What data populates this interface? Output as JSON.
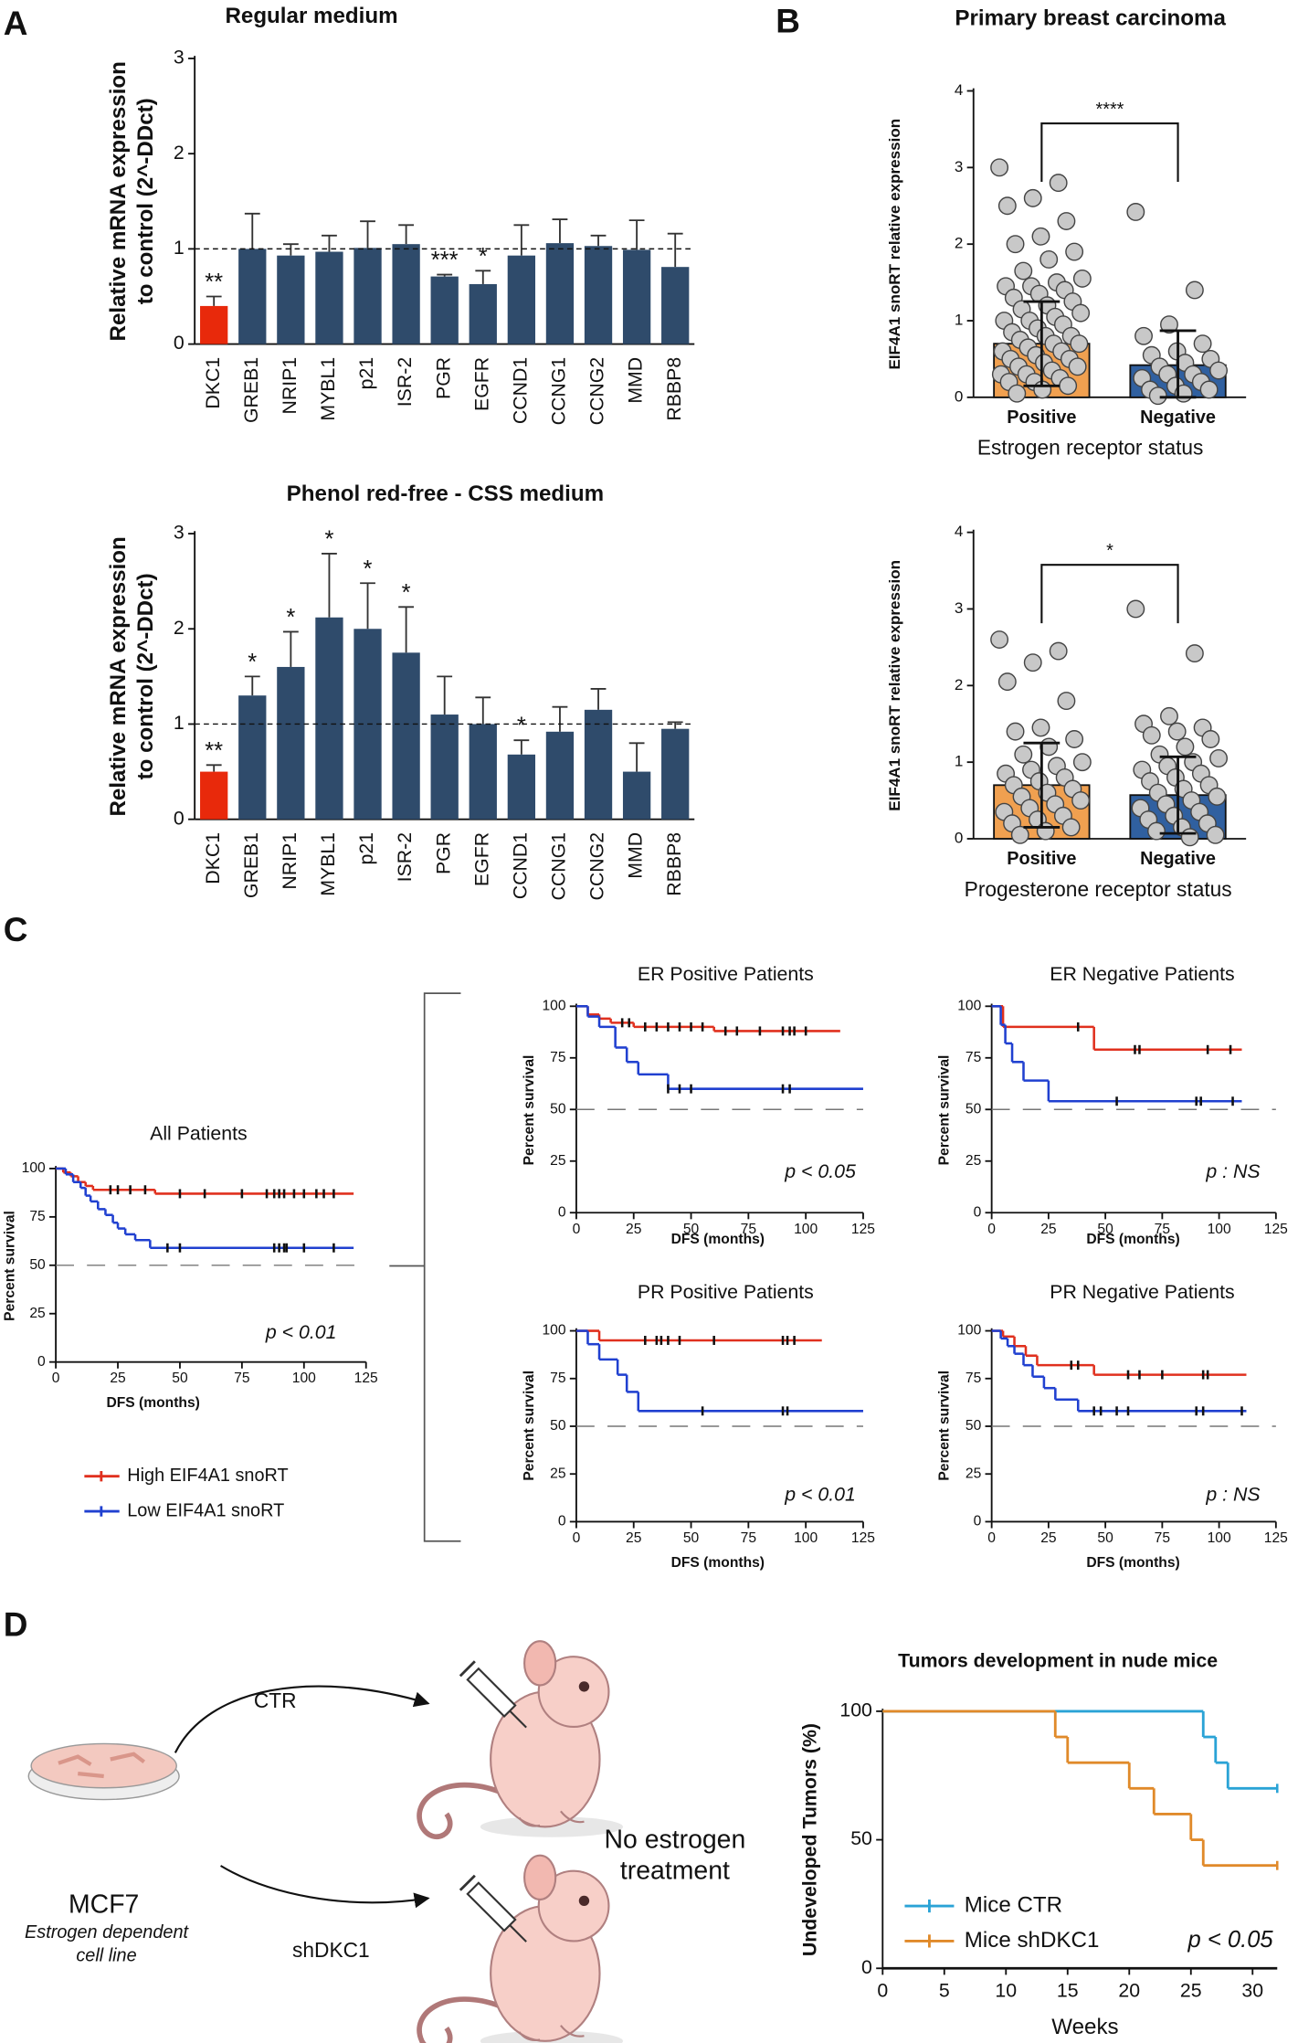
{
  "panel_labels": [
    "A",
    "B",
    "C",
    "D"
  ],
  "legend": [
    {
      "name": "High EIF4A1 snoRT",
      "color": "#e0301e"
    },
    {
      "name": "Low EIF4A1 snoRT",
      "color": "#2040d0"
    }
  ],
  "diagram": {
    "arrow_labels": [
      "CTR",
      "shDKC1"
    ],
    "cell_line": "MCF7",
    "cell_line_note": [
      "Estrogen dependent",
      "cell line"
    ],
    "treatment": [
      "No estrogen",
      "treatment"
    ]
  },
  "chart_data": [
    {
      "type": "bar",
      "title": "Regular medium",
      "y_label": [
        "Relative mRNA expression",
        "to control (2^-DDct)"
      ],
      "categories": [
        "DKC1",
        "GREB1",
        "NRIP1",
        "MYBL1",
        "p21",
        "ISR-2",
        "PGR",
        "EGFR",
        "CCND1",
        "CCNG1",
        "CCNG2",
        "MMD",
        "RBBP8"
      ],
      "values": [
        0.4,
        1.0,
        0.93,
        0.97,
        1.01,
        1.05,
        0.71,
        0.63,
        0.93,
        1.06,
        1.03,
        0.99,
        0.81
      ],
      "errors": [
        0.1,
        0.37,
        0.12,
        0.17,
        0.28,
        0.2,
        0.02,
        0.14,
        0.32,
        0.25,
        0.11,
        0.31,
        0.35
      ],
      "colors": [
        "#e8290b",
        "#2f4b6b",
        "#2f4b6b",
        "#2f4b6b",
        "#2f4b6b",
        "#2f4b6b",
        "#2f4b6b",
        "#2f4b6b",
        "#2f4b6b",
        "#2f4b6b",
        "#2f4b6b",
        "#2f4b6b",
        "#2f4b6b"
      ],
      "annotations": [
        "**",
        null,
        null,
        null,
        null,
        null,
        "***",
        "*",
        null,
        null,
        null,
        null,
        null
      ],
      "ylim": [
        0,
        3
      ],
      "yticks": [
        0,
        1,
        2,
        3
      ],
      "reference_line": 1
    },
    {
      "type": "bar",
      "title": "Phenol red-free - CSS medium",
      "y_label": [
        "Relative mRNA expression",
        "to control (2^-DDct)"
      ],
      "categories": [
        "DKC1",
        "GREB1",
        "NRIP1",
        "MYBL1",
        "p21",
        "ISR-2",
        "PGR",
        "EGFR",
        "CCND1",
        "CCNG1",
        "CCNG2",
        "MMD",
        "RBBP8"
      ],
      "values": [
        0.5,
        1.3,
        1.6,
        2.12,
        2.0,
        1.75,
        1.1,
        1.0,
        0.68,
        0.92,
        1.15,
        0.5,
        0.95
      ],
      "errors": [
        0.07,
        0.2,
        0.37,
        0.67,
        0.48,
        0.48,
        0.4,
        0.28,
        0.15,
        0.26,
        0.22,
        0.3,
        0.07
      ],
      "colors": [
        "#e8290b",
        "#2f4b6b",
        "#2f4b6b",
        "#2f4b6b",
        "#2f4b6b",
        "#2f4b6b",
        "#2f4b6b",
        "#2f4b6b",
        "#2f4b6b",
        "#2f4b6b",
        "#2f4b6b",
        "#2f4b6b",
        "#2f4b6b"
      ],
      "annotations": [
        "**",
        "*",
        "*",
        "*",
        "*",
        "*",
        null,
        null,
        "*",
        null,
        null,
        null,
        null
      ],
      "ylim": [
        0,
        3
      ],
      "yticks": [
        0,
        1,
        2,
        3
      ],
      "reference_line": 1
    },
    {
      "type": "bar_scatter",
      "title": "Primary breast carcinoma",
      "y_label": "EIF4A1 snoRT relative expression",
      "x_label": "Estrogen receptor status",
      "categories": [
        "Positive",
        "Negative"
      ],
      "values": [
        0.7,
        0.42
      ],
      "errors": [
        0.55,
        0.45
      ],
      "colors": [
        "#f0a050",
        "#3060a0"
      ],
      "points": [
        [
          3.0,
          2.8,
          2.6,
          2.5,
          2.3,
          2.1,
          2.0,
          1.9,
          1.8,
          1.65,
          1.55,
          1.5,
          1.45,
          1.45,
          1.4,
          1.35,
          1.3,
          1.25,
          1.2,
          1.15,
          1.1,
          1.05,
          1.0,
          1.0,
          0.95,
          0.9,
          0.85,
          0.8,
          0.8,
          0.75,
          0.7,
          0.7,
          0.65,
          0.6,
          0.6,
          0.55,
          0.5,
          0.5,
          0.45,
          0.4,
          0.4,
          0.35,
          0.3,
          0.3,
          0.25,
          0.2,
          0.2,
          0.15,
          0.1,
          0.05
        ],
        [
          2.42,
          1.4,
          0.95,
          0.8,
          0.7,
          0.6,
          0.55,
          0.5,
          0.45,
          0.4,
          0.35,
          0.3,
          0.3,
          0.25,
          0.2,
          0.15,
          0.1,
          0.1,
          0.05,
          0.02
        ]
      ],
      "significance": "****",
      "ylim": [
        0,
        4
      ],
      "yticks": [
        0,
        1,
        2,
        3,
        4
      ]
    },
    {
      "type": "bar_scatter",
      "y_label": "EIF4A1 snoRT relative expression",
      "x_label": "Progesterone receptor status",
      "categories": [
        "Positive",
        "Negative"
      ],
      "values": [
        0.7,
        0.57
      ],
      "errors": [
        0.55,
        0.5
      ],
      "colors": [
        "#f0a050",
        "#3060a0"
      ],
      "points": [
        [
          2.6,
          2.45,
          2.3,
          2.05,
          1.8,
          1.45,
          1.4,
          1.3,
          1.2,
          1.1,
          1.0,
          0.95,
          0.9,
          0.85,
          0.8,
          0.75,
          0.7,
          0.65,
          0.6,
          0.55,
          0.5,
          0.45,
          0.4,
          0.35,
          0.3,
          0.25,
          0.2,
          0.15,
          0.1,
          0.05
        ],
        [
          3.0,
          2.42,
          1.6,
          1.5,
          1.45,
          1.4,
          1.35,
          1.3,
          1.2,
          1.1,
          1.05,
          1.0,
          0.95,
          0.9,
          0.85,
          0.8,
          0.75,
          0.7,
          0.65,
          0.6,
          0.55,
          0.5,
          0.45,
          0.4,
          0.35,
          0.3,
          0.25,
          0.2,
          0.15,
          0.1,
          0.05,
          0.02
        ]
      ],
      "significance": "*",
      "ylim": [
        0,
        4
      ],
      "yticks": [
        0,
        1,
        2,
        3,
        4
      ]
    },
    {
      "type": "survival",
      "title": "All Patients",
      "x_label": "DFS (months)",
      "y_label": "Percent survival",
      "p_label": "p < 0.01",
      "xlim": [
        0,
        125
      ],
      "xticks": [
        0,
        25,
        50,
        75,
        100,
        125
      ],
      "ylim": [
        0,
        100
      ],
      "yticks": [
        0,
        25,
        50,
        75,
        100
      ],
      "reference_line": 50,
      "series": [
        {
          "color": "#e0301e",
          "x": [
            0,
            3,
            6,
            9,
            12,
            15,
            40
          ],
          "values": [
            100,
            98,
            96,
            93,
            91,
            89,
            87
          ],
          "follow_up_end": 120,
          "censored": [
            22,
            25,
            30,
            36,
            50,
            60,
            75,
            85,
            88,
            90,
            92,
            96,
            100,
            105,
            108,
            112
          ]
        },
        {
          "color": "#2040d0",
          "x": [
            0,
            4,
            7,
            10,
            12,
            14,
            17,
            20,
            23,
            25,
            28,
            32,
            38
          ],
          "values": [
            100,
            97,
            93,
            90,
            86,
            83,
            79,
            76,
            72,
            69,
            66,
            63,
            59
          ],
          "follow_up_end": 120,
          "censored": [
            45,
            50,
            88,
            90,
            92,
            93,
            100,
            112
          ]
        }
      ]
    },
    {
      "type": "survival",
      "title": "ER Positive Patients",
      "x_label": "DFS (months)",
      "y_label": "Percent survival",
      "p_label": "p < 0.05",
      "xlim": [
        0,
        125
      ],
      "xticks": [
        0,
        25,
        50,
        75,
        100,
        125
      ],
      "ylim": [
        0,
        100
      ],
      "yticks": [
        0,
        25,
        50,
        75,
        100
      ],
      "reference_line": 50,
      "series": [
        {
          "color": "#e0301e",
          "x": [
            0,
            5,
            10,
            15,
            25,
            60
          ],
          "values": [
            100,
            96,
            94,
            92,
            90,
            88
          ],
          "follow_up_end": 115,
          "censored": [
            20,
            23,
            30,
            35,
            40,
            45,
            50,
            55,
            65,
            70,
            80,
            90,
            93,
            95,
            100
          ]
        },
        {
          "color": "#2040d0",
          "x": [
            0,
            5,
            10,
            17,
            22,
            27,
            40
          ],
          "values": [
            100,
            95,
            90,
            80,
            73,
            67,
            60
          ],
          "follow_up_end": 125,
          "censored": [
            40,
            45,
            50,
            90,
            93
          ]
        }
      ]
    },
    {
      "type": "survival",
      "title": "ER Negative Patients",
      "x_label": "DFS (months)",
      "y_label": "Percent survival",
      "p_label": "p : NS",
      "xlim": [
        0,
        125
      ],
      "xticks": [
        0,
        25,
        50,
        75,
        100,
        125
      ],
      "ylim": [
        0,
        100
      ],
      "yticks": [
        0,
        25,
        50,
        75,
        100
      ],
      "reference_line": 50,
      "series": [
        {
          "color": "#e0301e",
          "x": [
            0,
            5,
            45
          ],
          "values": [
            100,
            90,
            79
          ],
          "follow_up_end": 110,
          "censored": [
            38,
            63,
            65,
            95,
            105
          ]
        },
        {
          "color": "#2040d0",
          "x": [
            0,
            4,
            6,
            9,
            14,
            25
          ],
          "values": [
            100,
            91,
            82,
            73,
            64,
            54
          ],
          "follow_up_end": 110,
          "censored": [
            55,
            90,
            92,
            106
          ]
        }
      ]
    },
    {
      "type": "survival",
      "title": "PR Positive Patients",
      "x_label": "DFS (months)",
      "y_label": "Percent survival",
      "p_label": "p < 0.01",
      "xlim": [
        0,
        125
      ],
      "xticks": [
        0,
        25,
        50,
        75,
        100,
        125
      ],
      "ylim": [
        0,
        100
      ],
      "yticks": [
        0,
        25,
        50,
        75,
        100
      ],
      "reference_line": 50,
      "series": [
        {
          "color": "#e0301e",
          "x": [
            0,
            10
          ],
          "values": [
            100,
            95
          ],
          "follow_up_end": 107,
          "censored": [
            30,
            35,
            37,
            40,
            45,
            60,
            90,
            92,
            95
          ]
        },
        {
          "color": "#2040d0",
          "x": [
            0,
            5,
            10,
            18,
            22,
            27
          ],
          "values": [
            100,
            93,
            85,
            77,
            68,
            58
          ],
          "follow_up_end": 125,
          "censored": [
            55,
            90,
            92
          ]
        }
      ]
    },
    {
      "type": "survival",
      "title": "PR Negative Patients",
      "x_label": "DFS (months)",
      "y_label": "Percent survival",
      "p_label": "p : NS",
      "xlim": [
        0,
        125
      ],
      "xticks": [
        0,
        25,
        50,
        75,
        100,
        125
      ],
      "ylim": [
        0,
        100
      ],
      "yticks": [
        0,
        25,
        50,
        75,
        100
      ],
      "reference_line": 50,
      "series": [
        {
          "color": "#e0301e",
          "x": [
            0,
            5,
            10,
            15,
            20,
            45
          ],
          "values": [
            100,
            97,
            92,
            87,
            82,
            77
          ],
          "follow_up_end": 112,
          "censored": [
            35,
            38,
            60,
            65,
            75,
            93,
            95
          ]
        },
        {
          "color": "#2040d0",
          "x": [
            0,
            4,
            7,
            10,
            14,
            18,
            23,
            28,
            38
          ],
          "values": [
            100,
            96,
            92,
            88,
            82,
            76,
            70,
            64,
            58
          ],
          "follow_up_end": 112,
          "censored": [
            45,
            48,
            55,
            60,
            90,
            93,
            110
          ]
        }
      ]
    },
    {
      "type": "survival",
      "title": "Tumors development in nude mice",
      "x_label": "Weeks",
      "y_label": "Undeveloped Tumors (%)",
      "p_label": "p < 0.05",
      "xlim": [
        0,
        32
      ],
      "xticks": [
        0,
        5,
        10,
        15,
        20,
        25,
        30
      ],
      "ylim": [
        0,
        100
      ],
      "yticks": [
        0,
        50,
        100
      ],
      "series": [
        {
          "name": "Mice CTR",
          "color": "#2aa3d6",
          "x": [
            0,
            26,
            27,
            28
          ],
          "values": [
            100,
            90,
            80,
            70
          ],
          "follow_up_end": 32,
          "censored": [
            32
          ]
        },
        {
          "name": "Mice shDKC1",
          "color": "#e08a2a",
          "x": [
            0,
            14,
            15,
            20,
            22,
            25,
            26
          ],
          "values": [
            100,
            90,
            80,
            70,
            60,
            50,
            40
          ],
          "follow_up_end": 32,
          "censored": [
            32
          ]
        }
      ]
    }
  ]
}
